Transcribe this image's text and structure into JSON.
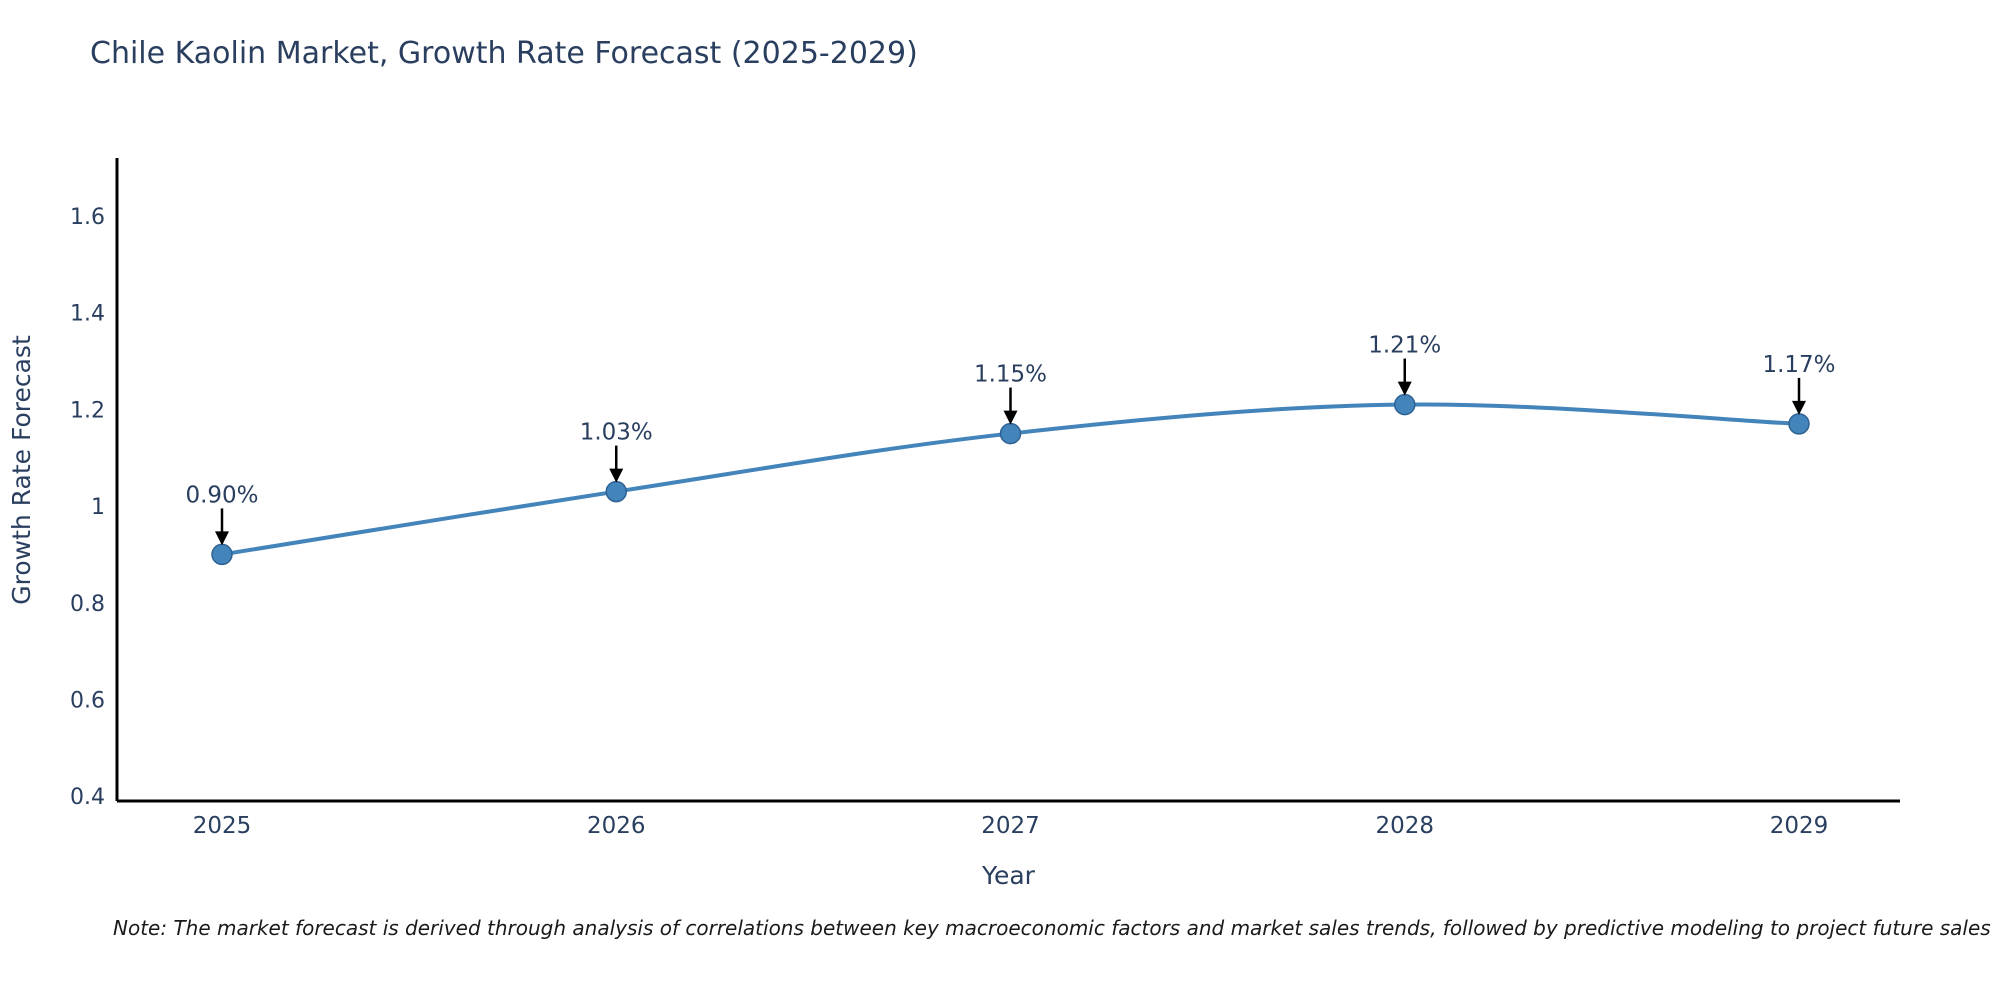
{
  "page": {
    "background": "#ffffff"
  },
  "header": {
    "title": "Chile Kaolin Market, Growth Rate Forecast (2025-2029)"
  },
  "footnote": {
    "text": "Note: The market forecast is derived through analysis of correlations between key macroeconomic factors and market sales trends, followed by predictive modeling to project future sales"
  },
  "colors": {
    "title_text": "#2a3f5f",
    "tick_text": "#2a3f5f",
    "axis_line": "#000000",
    "series_line": "#4384ba",
    "marker_fill": "#4384ba",
    "marker_edge": "#2e6293",
    "arrow": "#000000",
    "note_text": "#1a1a1a",
    "background": "#ffffff"
  },
  "chart_data": {
    "type": "line",
    "title": "Chile Kaolin Market, Growth Rate Forecast (2025-2029)",
    "categories": [
      "2025",
      "2026",
      "2027",
      "2028",
      "2029"
    ],
    "series": [
      {
        "name": "Growth Rate Forecast",
        "values": [
          0.9,
          1.03,
          1.15,
          1.21,
          1.17
        ]
      }
    ],
    "point_labels": [
      "0.90%",
      "1.03%",
      "1.15%",
      "1.21%",
      "1.17%"
    ],
    "xlabel": "Year",
    "ylabel": "Growth Rate Forecast",
    "yticks": [
      0.4,
      0.6,
      0.8,
      1,
      1.2,
      1.4,
      1.6
    ],
    "ytick_labels": [
      "0.4",
      "0.6",
      "0.8",
      "1",
      "1.2",
      "1.4",
      "1.6"
    ],
    "ylim": [
      0.39,
      1.72
    ],
    "grid": false,
    "legend": false,
    "line_shape": "spline",
    "annotation_style": "value-label-with-down-arrow"
  }
}
